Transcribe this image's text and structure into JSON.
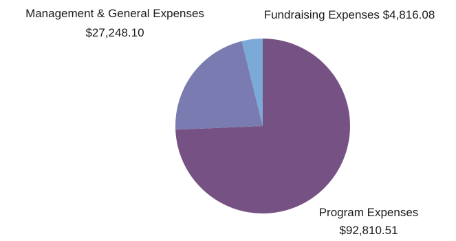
{
  "chart_data": {
    "type": "pie",
    "title": "",
    "start_angle_deg": 0,
    "direction": "clockwise",
    "legend": "none",
    "slices": [
      {
        "name": "Program Expenses",
        "value": 92810.51,
        "label": "Program Expenses",
        "value_label": "$92,810.51",
        "color": "#765183"
      },
      {
        "name": "Management & General Expenses",
        "value": 27248.1,
        "label": "Management & General Expenses",
        "value_label": "$27,248.10",
        "color": "#7a7cb1"
      },
      {
        "name": "Fundraising Expenses",
        "value": 4816.08,
        "label": "Fundraising Expenses $4,816.08",
        "value_label": "",
        "color": "#7ba9d8"
      }
    ]
  }
}
